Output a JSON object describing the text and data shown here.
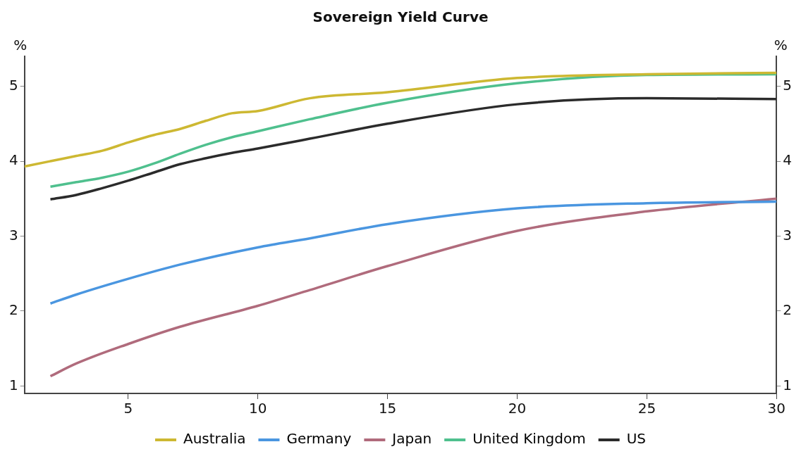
{
  "chart_data": {
    "type": "line",
    "title": "Sovereign Yield Curve",
    "ylabel": "%",
    "y2label": "%",
    "xlim": [
      1,
      30
    ],
    "xticks": [
      5,
      10,
      15,
      20,
      25,
      30
    ],
    "ylim": [
      0.9,
      5.4
    ],
    "yticks": [
      1,
      2,
      3,
      4,
      5
    ],
    "y2lim": [
      0.9,
      5.4
    ],
    "y2ticks": [
      1,
      2,
      3,
      4,
      5
    ],
    "grid": false,
    "legend": "bottom",
    "marker": "none",
    "line_style": "solid",
    "series": [
      {
        "name": "Australia",
        "color": "#cdb832",
        "x": [
          1,
          2,
          3,
          4,
          5,
          6,
          7,
          8,
          9,
          10,
          12,
          15,
          20,
          25,
          30
        ],
        "values": [
          3.93,
          4.0,
          4.07,
          4.14,
          4.25,
          4.35,
          4.43,
          4.54,
          4.64,
          4.67,
          4.84,
          4.92,
          5.11,
          5.16,
          5.18
        ]
      },
      {
        "name": "Germany",
        "color": "#4a96e0",
        "x": [
          2,
          3,
          5,
          7,
          10,
          12,
          15,
          20,
          25,
          30
        ],
        "values": [
          2.1,
          2.22,
          2.43,
          2.62,
          2.85,
          2.97,
          3.16,
          3.37,
          3.44,
          3.46
        ]
      },
      {
        "name": "Japan",
        "color": "#b06b7c",
        "x": [
          2,
          3,
          5,
          7,
          10,
          12,
          15,
          20,
          25,
          30
        ],
        "values": [
          1.13,
          1.3,
          1.56,
          1.79,
          2.07,
          2.28,
          2.6,
          3.07,
          3.33,
          3.5
        ]
      },
      {
        "name": "United Kingdom",
        "color": "#4fc08e",
        "x": [
          2,
          3,
          4,
          5,
          6,
          7,
          8,
          9,
          10,
          12,
          15,
          20,
          25,
          30
        ],
        "values": [
          3.66,
          3.72,
          3.78,
          3.86,
          3.97,
          4.1,
          4.22,
          4.32,
          4.4,
          4.56,
          4.78,
          5.04,
          5.15,
          5.16
        ]
      },
      {
        "name": "US",
        "color": "#2b2b2b",
        "x": [
          2,
          3,
          4,
          5,
          6,
          7,
          8,
          9,
          10,
          12,
          15,
          20,
          25,
          30
        ],
        "values": [
          3.49,
          3.55,
          3.64,
          3.74,
          3.85,
          3.96,
          4.04,
          4.11,
          4.17,
          4.3,
          4.5,
          4.76,
          4.84,
          4.83
        ]
      }
    ]
  }
}
